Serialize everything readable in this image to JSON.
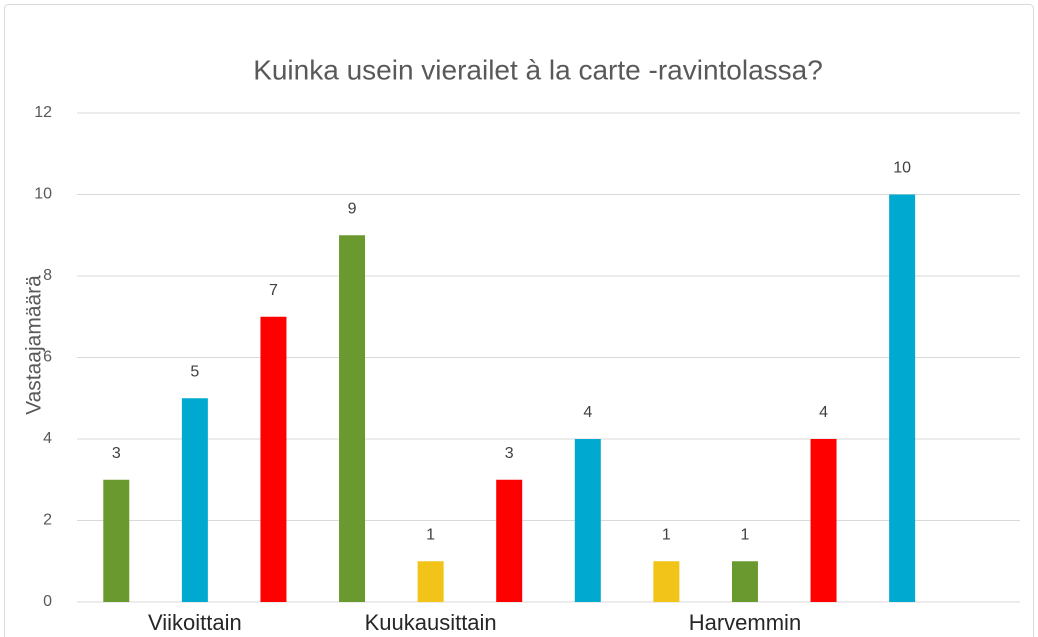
{
  "chart_data": {
    "type": "bar",
    "title": "Kuinka usein vierailet à la carte -ravintolassa?",
    "y_label": "Vastaajamäärä",
    "categories": [
      null,
      "Viikoittain",
      null,
      null,
      "Kuukausittain",
      null,
      null,
      null,
      "Harvemmin",
      null,
      null,
      null
    ],
    "values": [
      3,
      5,
      7,
      9,
      1,
      3,
      4,
      1,
      1,
      4,
      10,
      null
    ],
    "colors": [
      "#6a9a2f",
      "#00a9d0",
      "#ff0000",
      "#6a9a2f",
      "#f2c318",
      "#ff0000",
      "#00a9d0",
      "#f2c318",
      "#6a9a2f",
      "#ff0000",
      "#00a9d0",
      null
    ],
    "ylim": [
      0,
      12
    ],
    "yticks": [
      0,
      2,
      4,
      6,
      8,
      10,
      12
    ],
    "grid": true
  }
}
